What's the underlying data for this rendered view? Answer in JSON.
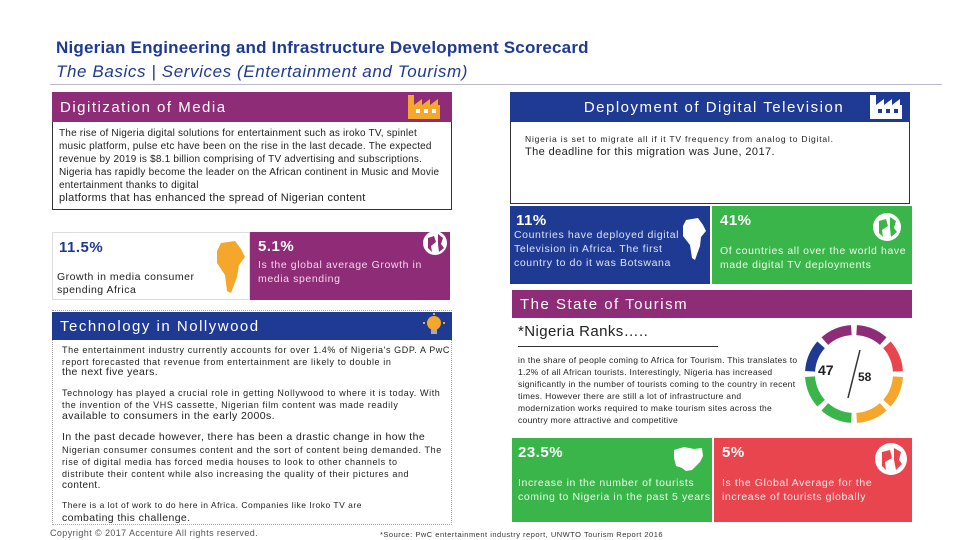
{
  "header": {
    "title": "Nigerian Engineering and Infrastructure Development Scorecard",
    "subtitle": "The Basics | Services (Entertainment and Tourism)"
  },
  "digitization": {
    "heading": "Digitization of Media",
    "body": "The rise of Nigeria digital solutions for entertainment such as iroko TV, spinlet music platform, pulse etc have been on the rise in the last decade. The expected revenue by 2019 is $8.1 billion comprising of TV advertising and subscriptions. Nigeria has rapidly become the leader on the African continent in Music and Movie entertainment thanks to digital",
    "body_tail": "platforms that has enhanced the spread of Nigerian content",
    "stat1": {
      "value": "11.5%",
      "text": "Growth in media consumer spending Africa"
    },
    "stat2": {
      "value": "5.1%",
      "text": "Is the global average Growth in media spending"
    }
  },
  "nollywood": {
    "heading": "Technology in Nollywood",
    "p1": "The entertainment industry currently accounts for over 1.4% of Nigeria's GDP. A PwC report forecasted that revenue from entertainment are likely to double in",
    "p1_tail": "the next five years.",
    "p2": "Technology has played a crucial role in getting Nollywood to where it is today. With the invention of the VHS cassette, Nigerian film content was made readily",
    "p2_tail": "available to consumers in the early 2000s.",
    "p3_head": "In the past decade however, there has been a drastic change in how the",
    "p3": "Nigerian consumer consumes content and the sort of content being demanded. The rise of digital media has forced media houses to look to other channels to distribute their content while also increasing the quality of their pictures and",
    "p3_tail": "content.",
    "p4": "There is a lot of work to do here in Africa. Companies like Iroko TV are",
    "p4_tail": "combating this challenge."
  },
  "dtv": {
    "heading": "Deployment of Digital Television",
    "line1": "Nigeria is set to migrate all if it TV frequency from analog to Digital.",
    "line2": "The deadline for this migration was June, 2017.",
    "stat1": {
      "value": "11%",
      "text": "Countries have deployed digital Television in Africa. The first country to do it was Botswana"
    },
    "stat2": {
      "value": "41%",
      "text": "Of countries all over the world have made digital TV deployments"
    }
  },
  "tourism": {
    "heading": "The State of Tourism",
    "ranks_title": "*Nigeria Ranks…..",
    "body": "in the share of people coming to Africa for Tourism. This translates to 1.2% of all African tourists. Interestingly, Nigeria has increased significantly in the number of tourists coming to the country in recent times. However there are still a lot of infrastructure and modernization works required to make tourism sites across the country more attractive and competitive",
    "rank": "47",
    "rank_of": "58",
    "stat1": {
      "value": "23.5%",
      "text": "Increase in the number of tourists coming to Nigeria in the past 5 years"
    },
    "stat2": {
      "value": "5%",
      "text": "Is the Global Average for the increase of tourists globally"
    }
  },
  "footer": {
    "copyright": "Copyright © 2017 Accenture All rights reserved.",
    "source": "*Source: PwC entertainment industry report, UNWTO Tourism Report 2016"
  },
  "colors": {
    "purple": "#8e2c77",
    "blue": "#1f3a93",
    "green": "#39b54a",
    "orange": "#f4a72a",
    "red": "#e8454f"
  }
}
